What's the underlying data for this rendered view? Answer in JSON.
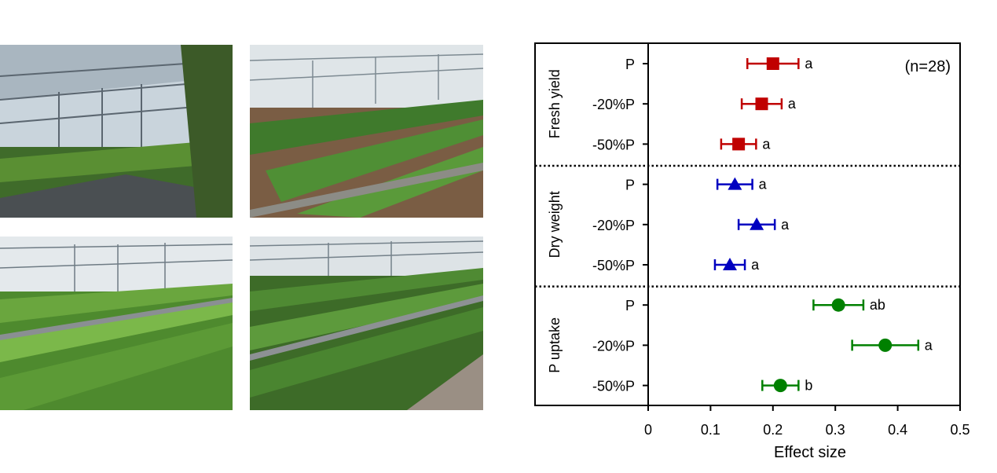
{
  "photos": [
    {
      "subject": "greenhouse-interior-photo",
      "style": "wide"
    },
    {
      "subject": "greenhouse-interior-photo",
      "style": "rows"
    },
    {
      "subject": "greenhouse-interior-photo",
      "style": "wide"
    },
    {
      "subject": "greenhouse-interior-photo",
      "style": "rows"
    }
  ],
  "chart_data": {
    "type": "scatter",
    "subtype": "forest-plot",
    "annotation": "(n=28)",
    "xlabel": "Effect size",
    "xlim": [
      0,
      0.5
    ],
    "xticks": [
      "0",
      "0.1",
      "0.2",
      "0.3",
      "0.4",
      "0.5"
    ],
    "grid": false,
    "group_separator": "dotted",
    "groups": [
      {
        "label": "Fresh yield",
        "color": "#c00000",
        "marker": "square",
        "rows": [
          {
            "label": "P",
            "value": 0.2,
            "ci": [
              0.159,
              0.241
            ],
            "letter": "a"
          },
          {
            "label": "-20%P",
            "value": 0.182,
            "ci": [
              0.15,
              0.214
            ],
            "letter": "a"
          },
          {
            "label": "-50%P",
            "value": 0.145,
            "ci": [
              0.117,
              0.173
            ],
            "letter": "a"
          }
        ]
      },
      {
        "label": "Dry weight",
        "color": "#0000c0",
        "marker": "triangle",
        "rows": [
          {
            "label": "P",
            "value": 0.139,
            "ci": [
              0.111,
              0.167
            ],
            "letter": "a"
          },
          {
            "label": "-20%P",
            "value": 0.174,
            "ci": [
              0.145,
              0.203
            ],
            "letter": "a"
          },
          {
            "label": "-50%P",
            "value": 0.131,
            "ci": [
              0.107,
              0.155
            ],
            "letter": "a"
          }
        ]
      },
      {
        "label": "P uptake",
        "color": "#008000",
        "marker": "circle",
        "rows": [
          {
            "label": "P",
            "value": 0.305,
            "ci": [
              0.265,
              0.345
            ],
            "letter": "ab"
          },
          {
            "label": "-20%P",
            "value": 0.38,
            "ci": [
              0.327,
              0.433
            ],
            "letter": "a"
          },
          {
            "label": "-50%P",
            "value": 0.212,
            "ci": [
              0.183,
              0.241
            ],
            "letter": "b"
          }
        ]
      }
    ]
  }
}
